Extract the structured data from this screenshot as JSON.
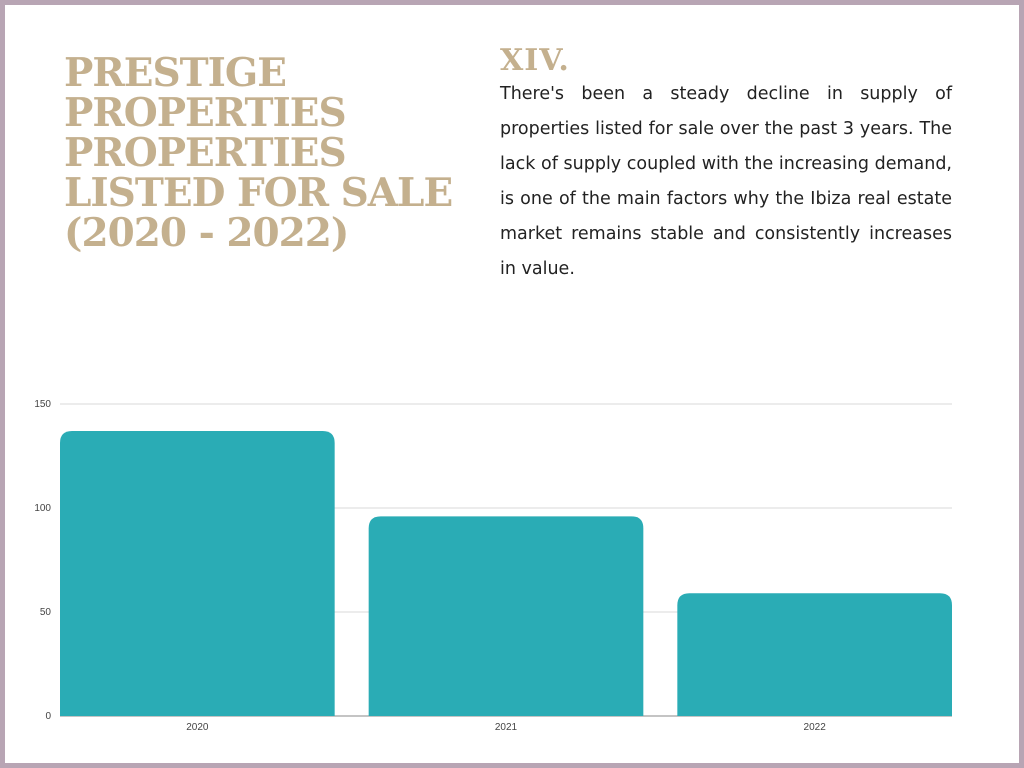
{
  "header": {
    "title_lines": [
      "PRESTIGE",
      "PROPERTIES",
      "PROPERTIES",
      "LISTED FOR SALE",
      "(2020 - 2022)"
    ],
    "section_number": "XIV.",
    "description": "There's been a steady decline in supply of properties listed for sale over the past 3 years. The lack of supply coupled with the increasing demand, is one of the main factors why the Ibiza real estate market remains stable and consistently increases in value."
  },
  "colors": {
    "accent": "#c4b08e",
    "bar": "#2aacb5",
    "border": "#b8a5b4",
    "grid": "#d8d8d8"
  },
  "chart_data": {
    "type": "bar",
    "categories": [
      "2020",
      "2021",
      "2022"
    ],
    "values": [
      137,
      96,
      59
    ],
    "ylim": [
      0,
      150
    ],
    "yticks": [
      0,
      50,
      100,
      150
    ],
    "grid": true,
    "xlabel": "",
    "ylabel": ""
  }
}
